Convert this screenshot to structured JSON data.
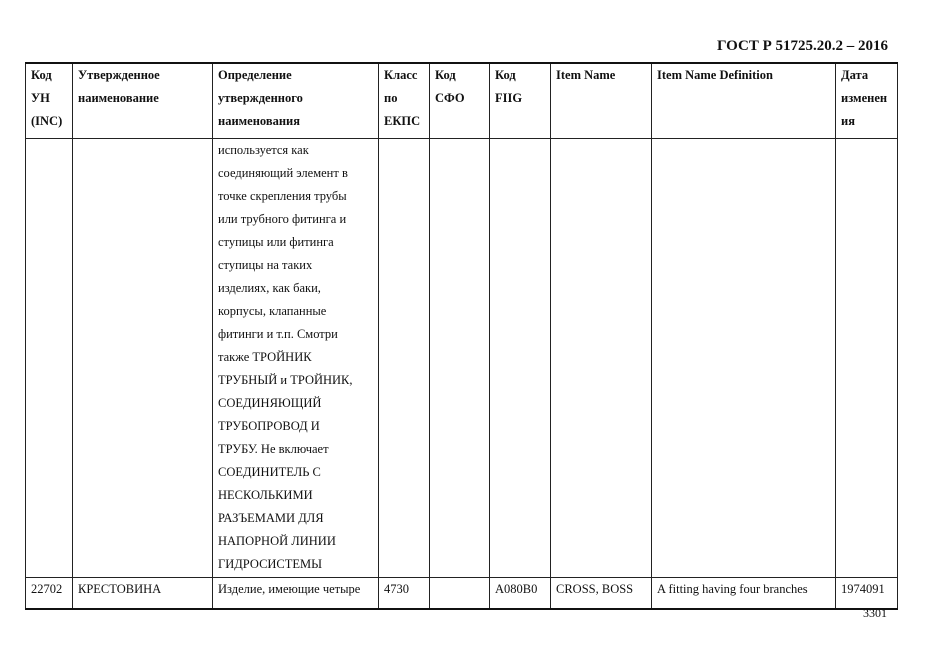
{
  "header": {
    "doc_title": "ГОСТ Р 51725.20.2 – 2016"
  },
  "table": {
    "columns": [
      [
        "Код",
        "УН",
        "(INC)"
      ],
      [
        "Утвержденное",
        "наименование"
      ],
      [
        "Определение",
        "утвержденного",
        "наименования"
      ],
      [
        "Класс",
        "по",
        "ЕКПС"
      ],
      [
        "Код",
        "СФО"
      ],
      [
        "Код",
        "FIIG"
      ],
      [
        "Item Name"
      ],
      [
        "Item Name Definition"
      ],
      [
        "Дата",
        "изменен",
        "ия"
      ]
    ],
    "continued_definition_lines": [
      "используется как",
      "соединяющий элемент в",
      "точке скрепления трубы",
      "или трубного фитинга и",
      "ступицы или фитинга",
      "ступицы на таких",
      "изделиях, как баки,",
      "корпусы, клапанные",
      "фитинги и т.п. Смотри",
      "также ТРОЙНИК",
      "ТРУБНЫЙ и ТРОЙНИК,",
      "СОЕДИНЯЮЩИЙ",
      "ТРУБОПРОВОД И",
      "ТРУБУ. Не включает",
      "СОЕДИНИТЕЛЬ С",
      "НЕСКОЛЬКИМИ",
      "РАЗЪЕМАМИ ДЛЯ",
      "НАПОРНОЙ ЛИНИИ",
      "ГИДРОСИСТЕМЫ"
    ],
    "row": {
      "inc": "22702",
      "name": "КРЕСТОВИНА",
      "definition": "Изделие, имеющие четыре",
      "class": "4730",
      "sfo": "",
      "fiig": "A080B0",
      "item_name": "CROSS, BOSS",
      "item_def": "A fitting having four branches",
      "date": "1974091"
    }
  },
  "footer": {
    "page_number": "3301"
  }
}
